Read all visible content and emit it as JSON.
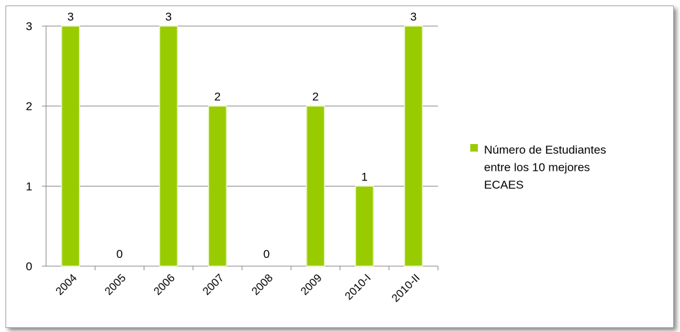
{
  "chart_data": {
    "type": "bar",
    "categories": [
      "2004",
      "2005",
      "2006",
      "2007",
      "2008",
      "2009",
      "2010-I",
      "2010-II"
    ],
    "series": [
      {
        "name": "Número de Estudiantes entre los 10 mejores ECAES",
        "values": [
          3,
          0,
          3,
          2,
          0,
          2,
          1,
          3
        ],
        "color": "#99cc00"
      }
    ],
    "yticks": [
      "0",
      "1",
      "2",
      "3"
    ],
    "ylim": [
      0,
      3
    ],
    "grid": true,
    "legend_position": "right",
    "legend_lines": [
      "Número de Estudiantes",
      "entre los 10 mejores",
      "ECAES"
    ],
    "data_labels": [
      "3",
      "0",
      "3",
      "2",
      "0",
      "2",
      "1",
      "3"
    ]
  }
}
